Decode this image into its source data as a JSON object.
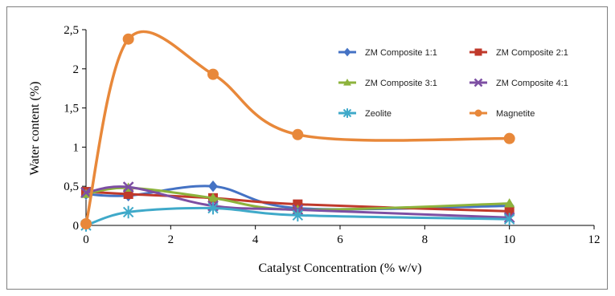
{
  "chart_data": {
    "type": "line",
    "xlabel": "Catalyst Concentration (% w/v)",
    "ylabel": "Water content (%)",
    "xlim": [
      0,
      12
    ],
    "ylim": [
      0,
      2.5
    ],
    "x_ticks": [
      "0",
      "2",
      "4",
      "6",
      "8",
      "10",
      "12"
    ],
    "y_ticks": [
      "0",
      "0,5",
      "1",
      "1,5",
      "2",
      "2,5"
    ],
    "x_tick_values": [
      0,
      2,
      4,
      6,
      8,
      10,
      12
    ],
    "y_tick_values": [
      0,
      0.5,
      1,
      1.5,
      2,
      2.5
    ],
    "grid": false,
    "legend_position": "top-right",
    "smooth": true,
    "series": [
      {
        "name": "ZM Composite 1:1",
        "color": "#4472C4",
        "marker": "diamond",
        "x": [
          0,
          1,
          3,
          5,
          10
        ],
        "y": [
          0.4,
          0.38,
          0.5,
          0.22,
          0.25
        ]
      },
      {
        "name": "ZM Composite 2:1",
        "color": "#C0392B",
        "marker": "square",
        "x": [
          0,
          1,
          3,
          5,
          10
        ],
        "y": [
          0.43,
          0.4,
          0.35,
          0.27,
          0.18
        ]
      },
      {
        "name": "ZM Composite 3:1",
        "color": "#8DB33C",
        "marker": "triangle",
        "x": [
          0,
          1,
          3,
          5,
          10
        ],
        "y": [
          0.4,
          0.48,
          0.35,
          0.2,
          0.28
        ]
      },
      {
        "name": "ZM Composite 4:1",
        "color": "#7D4FA3",
        "marker": "x",
        "x": [
          0,
          1,
          3,
          5,
          10
        ],
        "y": [
          0.42,
          0.49,
          0.25,
          0.2,
          0.1
        ]
      },
      {
        "name": "Zeolite",
        "color": "#3FA9C9",
        "marker": "star",
        "x": [
          0,
          1,
          3,
          5,
          10
        ],
        "y": [
          0.0,
          0.17,
          0.22,
          0.13,
          0.08
        ]
      },
      {
        "name": "Magnetite",
        "color": "#E8883A",
        "marker": "circle",
        "x": [
          0,
          1,
          3,
          5,
          10
        ],
        "y": [
          0.02,
          2.38,
          1.93,
          1.16,
          1.11
        ]
      }
    ]
  }
}
